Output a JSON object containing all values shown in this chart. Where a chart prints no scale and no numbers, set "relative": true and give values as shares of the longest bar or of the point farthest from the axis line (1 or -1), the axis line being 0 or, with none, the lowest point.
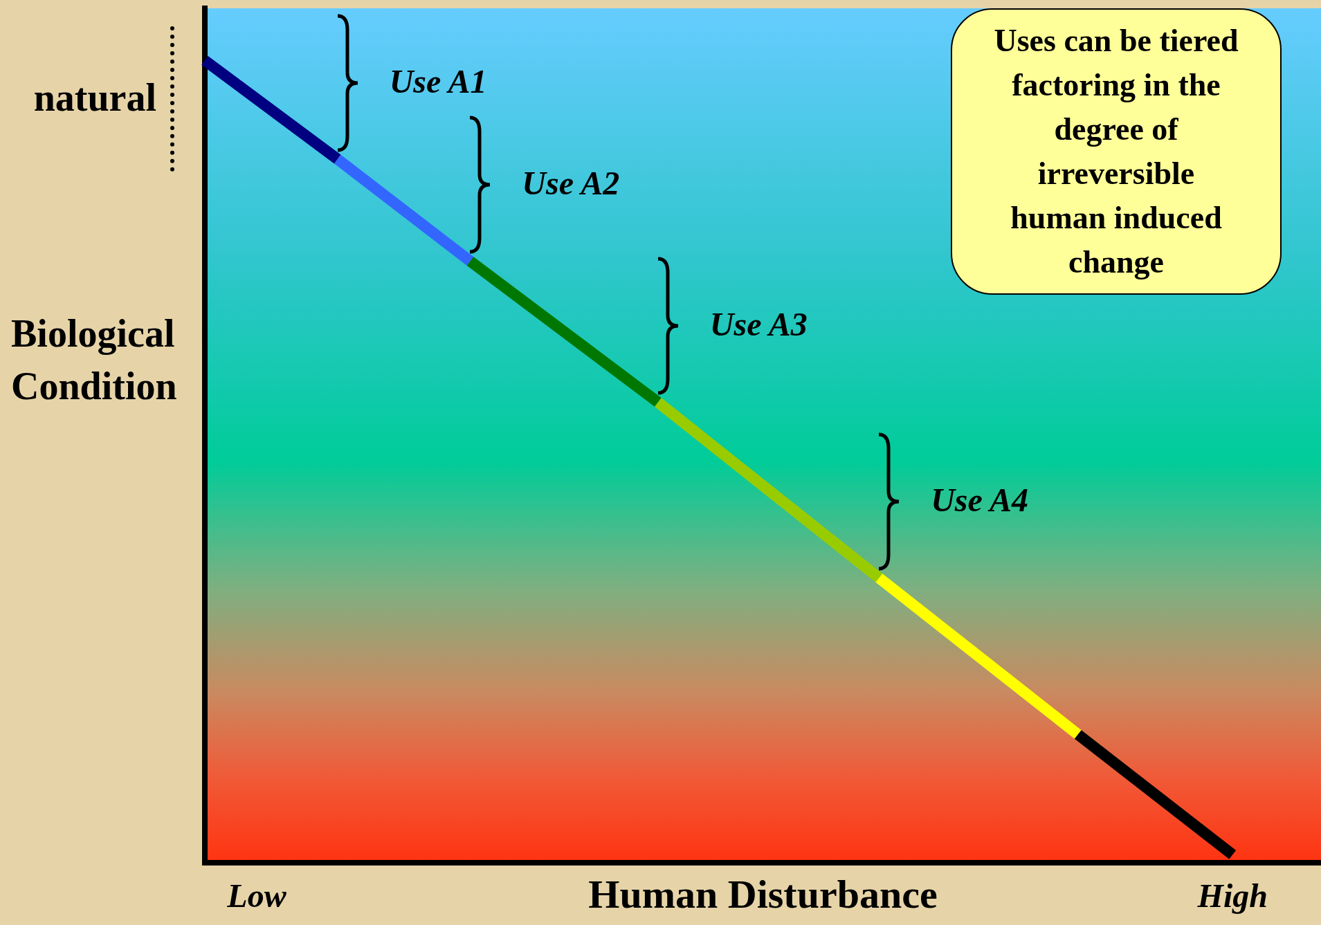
{
  "chart_data": {
    "type": "line",
    "relative": true,
    "xlabel": "Human Disturbance",
    "ylabel": "Biological Condition",
    "categories": [
      null,
      null,
      null,
      null,
      null,
      null,
      null,
      null,
      null,
      null,
      null,
      null,
      null,
      null,
      null,
      null,
      null,
      null,
      null,
      null,
      null,
      null,
      null,
      null,
      null,
      null,
      null,
      null,
      null,
      null,
      null,
      null,
      null,
      null,
      null,
      null,
      null,
      null,
      null,
      null,
      null,
      null,
      null,
      null,
      null,
      null,
      null,
      null,
      null,
      null,
      null,
      null,
      null,
      null,
      null,
      null,
      null,
      null,
      null,
      null,
      null,
      null,
      null,
      null,
      null,
      null,
      null,
      null,
      null,
      null,
      null,
      null,
      null,
      null,
      null,
      null,
      null,
      null,
      null,
      null,
      null,
      null,
      null,
      null,
      null,
      null,
      null,
      null,
      null,
      null,
      null,
      null,
      null,
      null,
      null,
      null,
      null,
      null,
      null,
      null,
      null,
      null
    ],
    "series": [
      {
        "color": "#000080",
        "values": [
          1.0,
          null,
          null,
          null,
          null,
          null,
          null,
          null,
          null,
          null,
          null,
          null,
          0.877,
          null,
          null,
          null,
          null,
          null,
          null,
          null,
          null,
          null,
          null,
          null,
          null,
          null,
          null,
          null,
          null,
          null,
          null,
          null,
          null,
          null,
          null,
          null,
          null,
          null,
          null,
          null,
          null,
          null,
          null,
          null,
          null,
          null,
          null,
          null,
          null,
          null,
          null,
          null,
          null,
          null,
          null,
          null,
          null,
          null,
          null,
          null,
          null,
          null,
          null,
          null,
          null,
          null,
          null,
          null,
          null,
          null,
          null,
          null,
          null,
          null,
          null,
          null,
          null,
          null,
          null,
          null,
          null,
          null,
          null,
          null,
          null,
          null,
          null,
          null,
          null,
          null,
          null,
          null,
          null,
          null,
          null,
          null,
          null,
          null,
          null,
          null,
          null,
          null
        ]
      },
      {
        "color": "#3366ff",
        "values": [
          null,
          null,
          null,
          null,
          null,
          null,
          null,
          null,
          null,
          null,
          null,
          null,
          0.877,
          null,
          null,
          null,
          null,
          null,
          null,
          null,
          null,
          null,
          null,
          null,
          0.75,
          null,
          null,
          null,
          null,
          null,
          null,
          null,
          null,
          null,
          null,
          null,
          null,
          null,
          null,
          null,
          null,
          null,
          null,
          null,
          null,
          null,
          null,
          null,
          null,
          null,
          null,
          null,
          null,
          null,
          null,
          null,
          null,
          null,
          null,
          null,
          null,
          null,
          null,
          null,
          null,
          null,
          null,
          null,
          null,
          null,
          null,
          null,
          null,
          null,
          null,
          null,
          null,
          null,
          null,
          null,
          null,
          null,
          null,
          null,
          null,
          null,
          null,
          null,
          null,
          null,
          null,
          null,
          null,
          null,
          null,
          null,
          null,
          null,
          null,
          null,
          null,
          null
        ]
      },
      {
        "color": "#007700",
        "values": [
          null,
          null,
          null,
          null,
          null,
          null,
          null,
          null,
          null,
          null,
          null,
          null,
          null,
          null,
          null,
          null,
          null,
          null,
          null,
          null,
          null,
          null,
          null,
          null,
          0.75,
          null,
          null,
          null,
          null,
          null,
          null,
          null,
          null,
          null,
          null,
          null,
          null,
          null,
          null,
          null,
          null,
          0.574,
          null,
          null,
          null,
          null,
          null,
          null,
          null,
          null,
          null,
          null,
          null,
          null,
          null,
          null,
          null,
          null,
          null,
          null,
          null,
          null,
          null,
          null,
          null,
          null,
          null,
          null,
          null,
          null,
          null,
          null,
          null,
          null,
          null,
          null,
          null,
          null,
          null,
          null,
          null,
          null,
          null,
          null,
          null,
          null,
          null,
          null,
          null,
          null,
          null,
          null,
          null,
          null,
          null,
          null,
          null,
          null,
          null,
          null,
          null,
          null
        ]
      },
      {
        "color": "#99cc00",
        "values": [
          null,
          null,
          null,
          null,
          null,
          null,
          null,
          null,
          null,
          null,
          null,
          null,
          null,
          null,
          null,
          null,
          null,
          null,
          null,
          null,
          null,
          null,
          null,
          null,
          null,
          null,
          null,
          null,
          null,
          null,
          null,
          null,
          null,
          null,
          null,
          null,
          null,
          null,
          null,
          null,
          null,
          0.574,
          null,
          null,
          null,
          null,
          null,
          null,
          null,
          null,
          null,
          null,
          null,
          null,
          null,
          null,
          null,
          null,
          null,
          null,
          null,
          0.355,
          null,
          null,
          null,
          null,
          null,
          null,
          null,
          null,
          null,
          null,
          null,
          null,
          null,
          null,
          null,
          null,
          null,
          null,
          null,
          null,
          null,
          null,
          null,
          null,
          null,
          null,
          null,
          null,
          null,
          null,
          null,
          null,
          null,
          null,
          null,
          null,
          null,
          null,
          null,
          null
        ]
      },
      {
        "color": "#ffff00",
        "values": [
          null,
          null,
          null,
          null,
          null,
          null,
          null,
          null,
          null,
          null,
          null,
          null,
          null,
          null,
          null,
          null,
          null,
          null,
          null,
          null,
          null,
          null,
          null,
          null,
          null,
          null,
          null,
          null,
          null,
          null,
          null,
          null,
          null,
          null,
          null,
          null,
          null,
          null,
          null,
          null,
          null,
          null,
          null,
          null,
          null,
          null,
          null,
          null,
          null,
          null,
          null,
          null,
          null,
          null,
          null,
          null,
          null,
          null,
          null,
          null,
          null,
          0.355,
          null,
          null,
          null,
          null,
          null,
          null,
          null,
          null,
          null,
          null,
          null,
          null,
          null,
          null,
          null,
          null,
          null,
          0.16,
          null,
          null,
          null,
          null,
          null,
          null,
          null,
          null,
          null,
          null,
          null,
          null,
          null,
          null,
          null,
          null,
          null,
          null,
          null,
          null,
          null,
          null
        ]
      },
      {
        "color": "#000000",
        "values": [
          null,
          null,
          null,
          null,
          null,
          null,
          null,
          null,
          null,
          null,
          null,
          null,
          null,
          null,
          null,
          null,
          null,
          null,
          null,
          null,
          null,
          null,
          null,
          null,
          null,
          null,
          null,
          null,
          null,
          null,
          null,
          null,
          null,
          null,
          null,
          null,
          null,
          null,
          null,
          null,
          null,
          null,
          null,
          null,
          null,
          null,
          null,
          null,
          null,
          null,
          null,
          null,
          null,
          null,
          null,
          null,
          null,
          null,
          null,
          null,
          null,
          null,
          null,
          null,
          null,
          null,
          null,
          null,
          null,
          null,
          null,
          null,
          null,
          null,
          null,
          null,
          null,
          null,
          null,
          0.16,
          null,
          null,
          null,
          null,
          null,
          null,
          null,
          null,
          null,
          null,
          null,
          null,
          null,
          0.01,
          null,
          null,
          null,
          null,
          null,
          null,
          null,
          null
        ]
      }
    ],
    "annotations": [
      "natural",
      "Use A1",
      "Use A2",
      "Use A3",
      "Use A4",
      "Uses can be tiered factoring in the degree of irreversible human induced change",
      "Low",
      "High"
    ],
    "grid": false,
    "legend": false,
    "marker": "none",
    "line_style": "solid"
  }
}
